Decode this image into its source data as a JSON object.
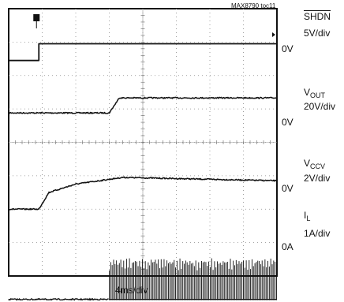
{
  "figure_id": "MAX8790 toc11",
  "chart_data": {
    "type": "line",
    "x_axis": {
      "label": "4ms/div",
      "scale": "4ms/div",
      "divisions": 8
    },
    "y_axis": {
      "divisions": 8
    },
    "grid": true,
    "channels": [
      {
        "name_main": "SHDN",
        "name_sub": "",
        "overline": true,
        "scale": "5V/div",
        "zero_label": "0V",
        "description": "logic step low-to-high at ~0.9 div",
        "points": [
          [
            0,
            0
          ],
          [
            0.9,
            0
          ],
          [
            0.9,
            0.5
          ],
          [
            8,
            0.5
          ]
        ]
      },
      {
        "name_main": "V",
        "name_sub": "OUT",
        "overline": false,
        "scale": "20V/div",
        "zero_label": "0V",
        "description": "output voltage soft-start step",
        "points": [
          [
            0,
            0
          ],
          [
            3.0,
            0
          ],
          [
            3.3,
            0.45
          ],
          [
            8,
            0.45
          ]
        ]
      },
      {
        "name_main": "V",
        "name_sub": "CCV",
        "overline": false,
        "scale": "2V/div",
        "zero_label": "0V",
        "description": "ramp from ~0.9 div to ~3.4 div then flat",
        "points": [
          [
            0,
            0
          ],
          [
            0.9,
            0
          ],
          [
            1.2,
            0.5
          ],
          [
            2,
            0.75
          ],
          [
            3.4,
            0.95
          ],
          [
            8,
            0.85
          ]
        ]
      },
      {
        "name_main": "I",
        "name_sub": "L",
        "overline": false,
        "scale": "1A/div",
        "zero_label": "0A",
        "description": "inductor current switching pulses starting ~3 div, peak ~1.1 div",
        "points": [
          [
            0,
            0
          ],
          [
            3.0,
            0
          ],
          [
            3.0,
            1.1
          ],
          [
            8,
            1.1
          ]
        ]
      }
    ]
  }
}
